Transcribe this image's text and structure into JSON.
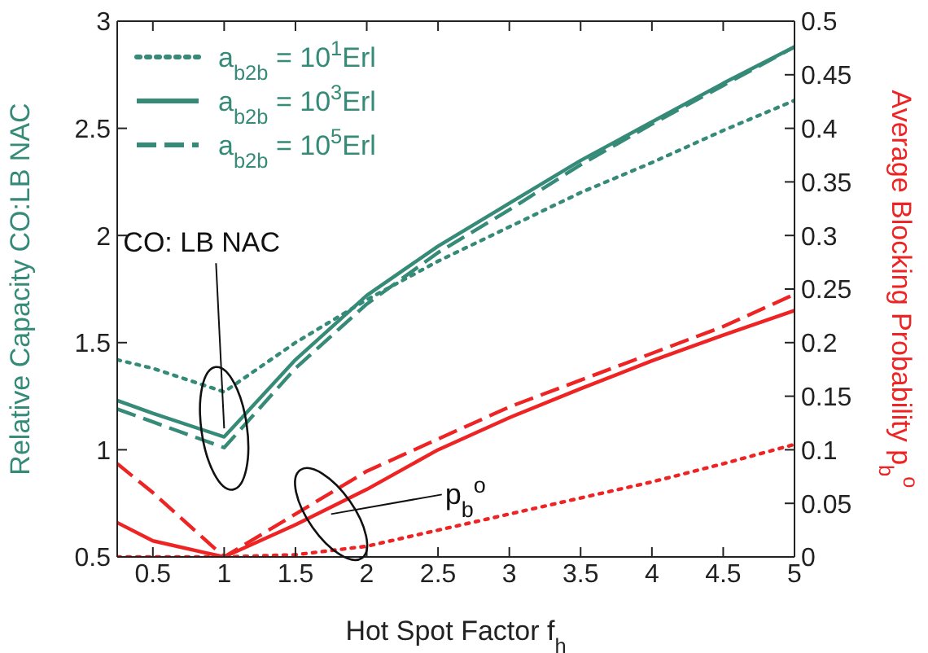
{
  "chart_data": {
    "type": "line",
    "xlabel": "Hot Spot Factor f$_{h}$",
    "ylabel": "Relative Capacity CO:LB NAC",
    "y2label": "Average Blocking Probability p$_{b}$$^{o}$",
    "x": [
      0.25,
      0.5,
      1,
      1.5,
      2,
      2.5,
      3,
      3.5,
      4,
      4.5,
      5
    ],
    "series": [
      {
        "name": "a$_{b2b}$ = 10$^{1}$Erl",
        "color": "#368a78",
        "line_style": "dotted",
        "values": [
          1.42,
          1.38,
          1.27,
          1.5,
          1.7,
          1.88,
          2.04,
          2.2,
          2.34,
          2.49,
          2.63
        ]
      },
      {
        "name": "a$_{b2b}$ = 10$^{3}$Erl",
        "color": "#368a78",
        "line_style": "solid",
        "values": [
          1.23,
          1.17,
          1.06,
          1.42,
          1.72,
          1.95,
          2.15,
          2.35,
          2.53,
          2.71,
          2.88
        ]
      },
      {
        "name": "a$_{b2b}$ = 10$^{5}$Erl",
        "color": "#368a78",
        "line_style": "dashed",
        "values": [
          1.19,
          1.13,
          1.01,
          1.38,
          1.68,
          1.92,
          2.12,
          2.33,
          2.52,
          2.7,
          2.88
        ]
      },
      {
        "color": "#ee2424",
        "line_style": "dotted",
        "axis": "y2",
        "values": [
          0,
          0,
          0,
          0.002,
          0.01,
          0.025,
          0.04,
          0.055,
          0.07,
          0.087,
          0.105
        ]
      },
      {
        "color": "#ee2424",
        "line_style": "solid",
        "axis": "y2",
        "values": [
          0.032,
          0.015,
          0,
          0.03,
          0.063,
          0.1,
          0.13,
          0.157,
          0.183,
          0.207,
          0.23
        ]
      },
      {
        "color": "#ee2424",
        "line_style": "dashed",
        "axis": "y2",
        "values": [
          0.087,
          0.06,
          0,
          0.04,
          0.08,
          0.11,
          0.14,
          0.165,
          0.19,
          0.215,
          0.245
        ]
      }
    ],
    "xlim": [
      0.25,
      5
    ],
    "xticks": [
      0.5,
      1,
      1.5,
      2,
      2.5,
      3,
      3.5,
      4,
      4.5,
      5
    ],
    "ylim": [
      0.5,
      3
    ],
    "yticks": [
      0.5,
      1,
      1.5,
      2,
      2.5,
      3
    ],
    "y2lim": [
      0,
      0.5
    ],
    "y2ticks": [
      0,
      0.05,
      0.1,
      0.15,
      0.2,
      0.25,
      0.3,
      0.35,
      0.4,
      0.45,
      0.5
    ],
    "annotations": [
      {
        "text": "CO: LB NAC",
        "x": 1,
        "y": 1.1
      },
      {
        "text": "p$_{b}$$^{o}$",
        "x": 1.75,
        "y": 0.7
      }
    ],
    "legend": "top left",
    "marker": "none"
  }
}
